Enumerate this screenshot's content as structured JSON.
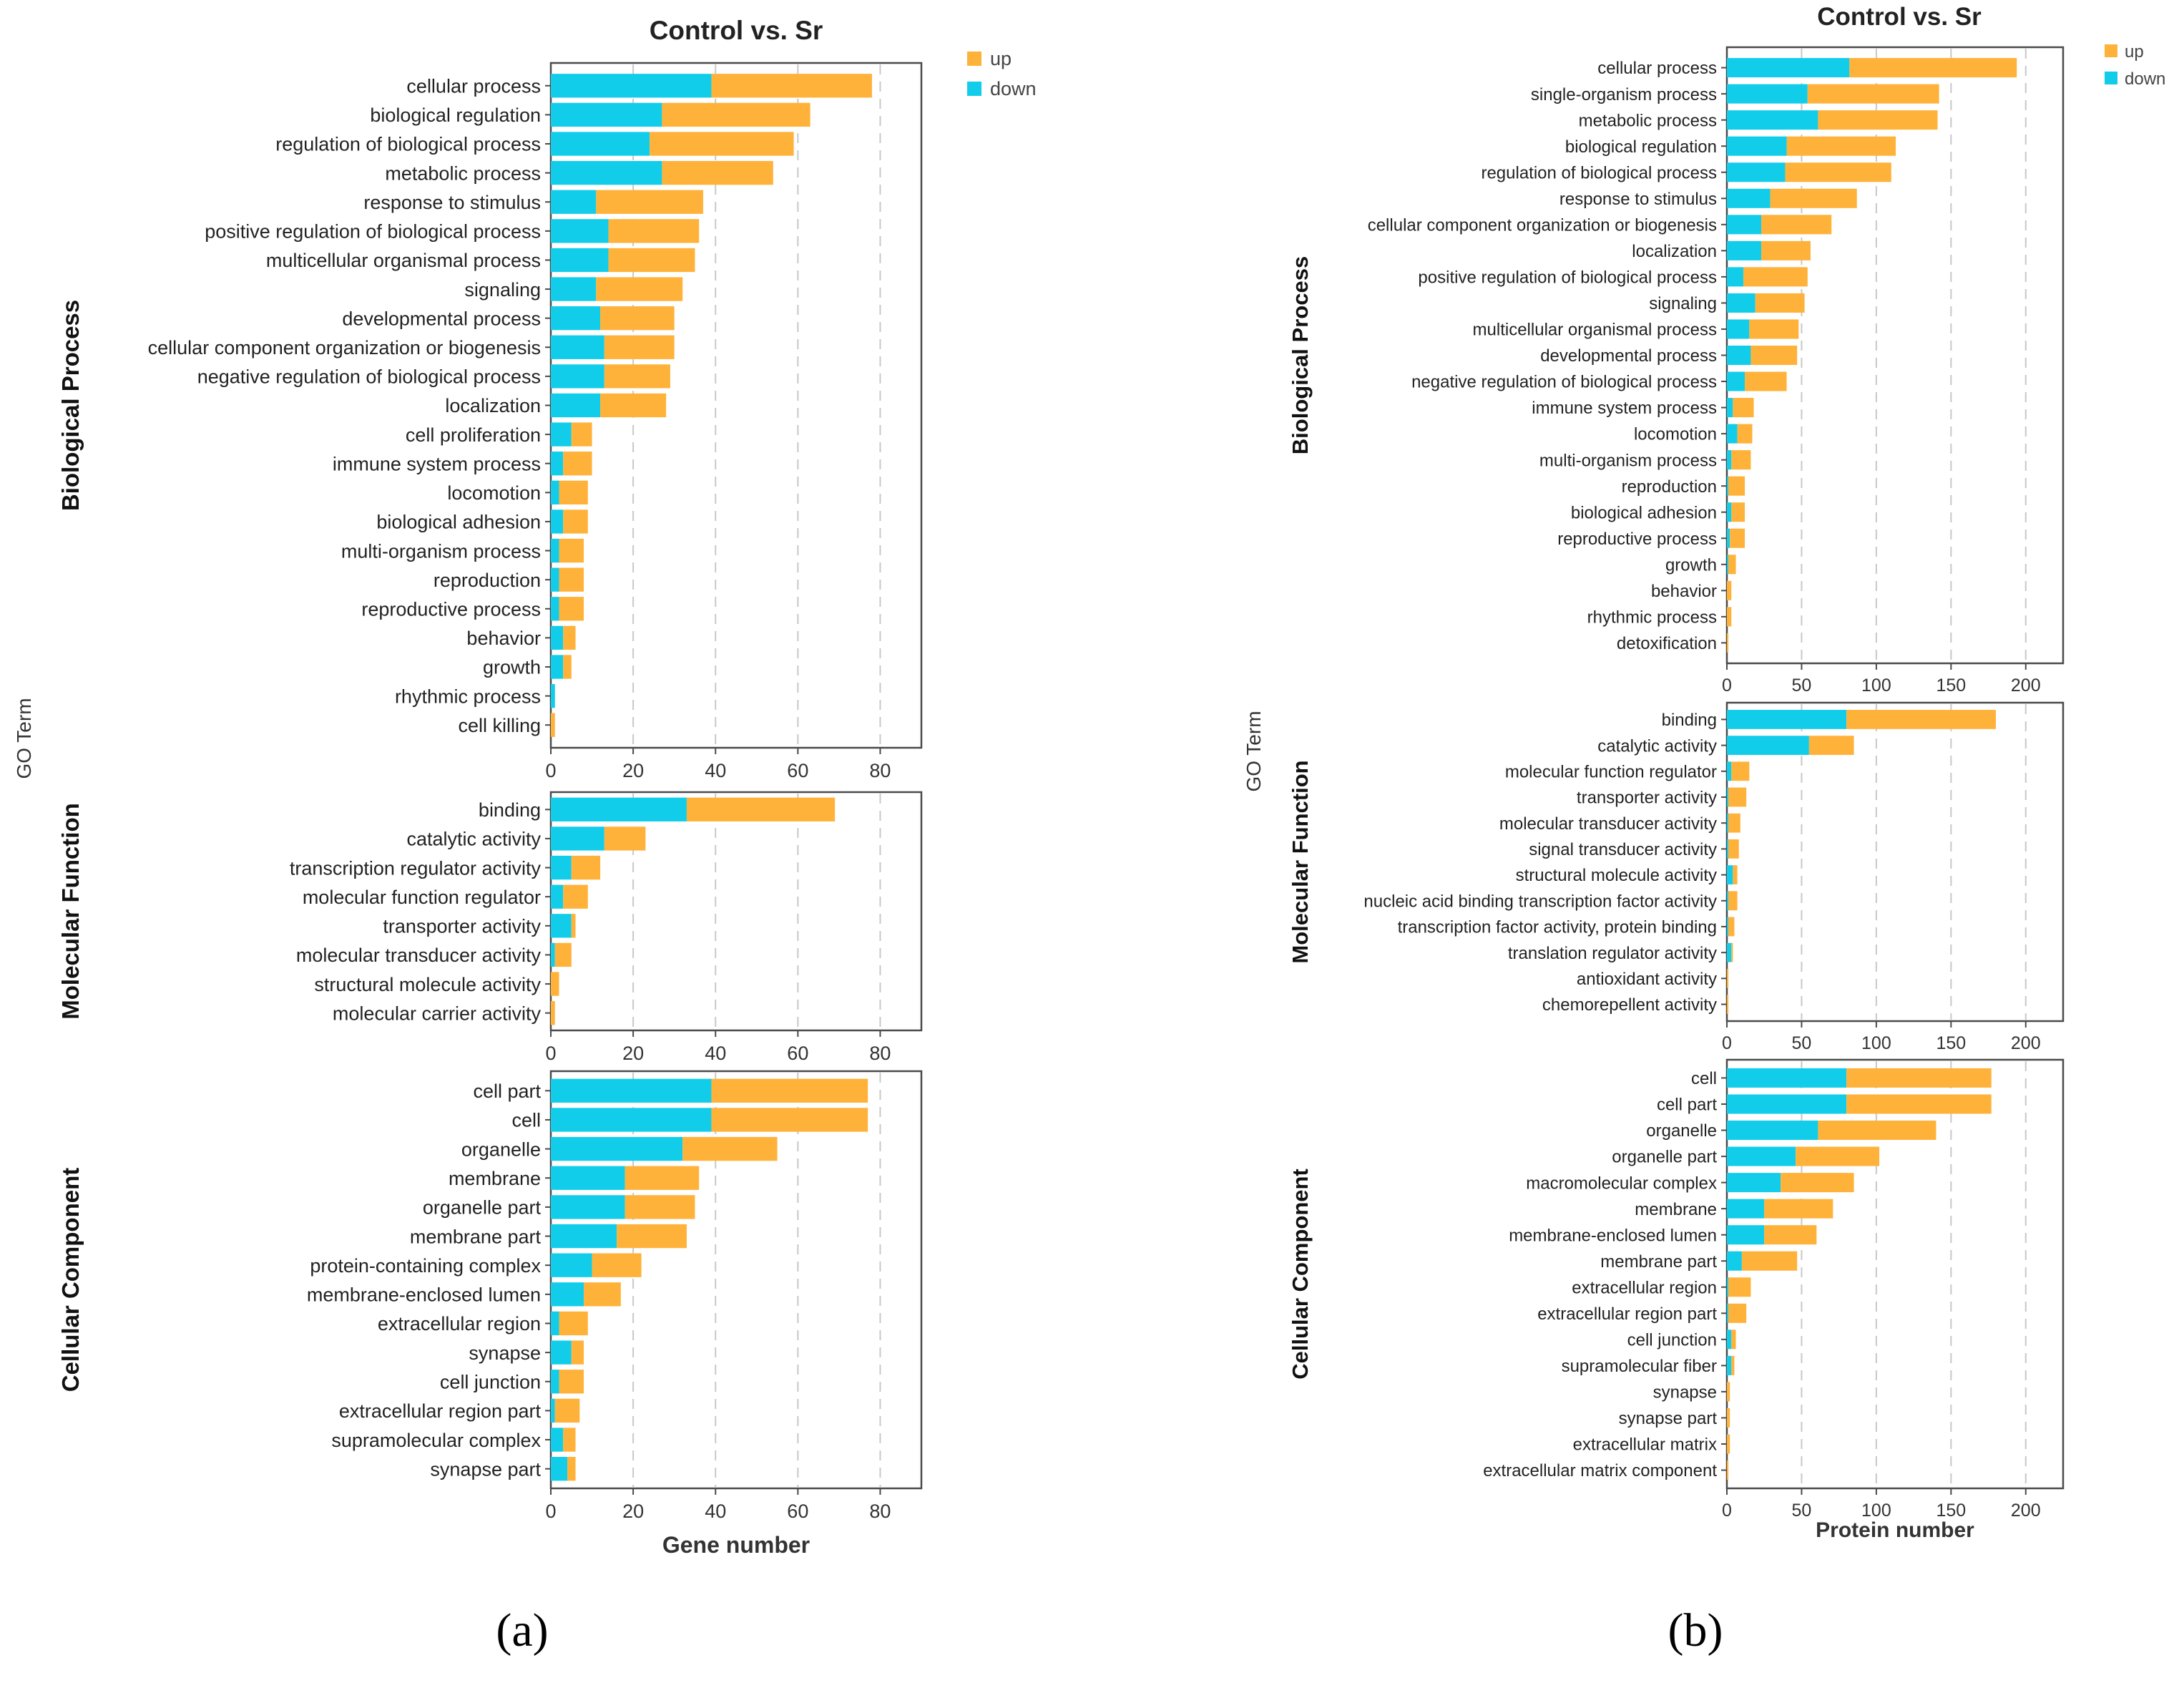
{
  "figure": {
    "panel_labels": [
      "(a)",
      "(b)"
    ]
  },
  "colors": {
    "up": "#FFB23A",
    "down": "#12CDEA",
    "text": "#222222"
  },
  "chart_data": [
    {
      "type": "bar",
      "stacked": true,
      "orientation": "horizontal",
      "panel": "(a)",
      "title": "Control vs. Sr",
      "xlabel": "Gene number",
      "ylabel": "GO Term",
      "xlim": [
        0,
        90
      ],
      "xticks": [
        0,
        20,
        40,
        60,
        80
      ],
      "grid": true,
      "legend": {
        "position": "top-right",
        "entries": [
          {
            "key": "up",
            "label": "up"
          },
          {
            "key": "down",
            "label": "down"
          }
        ]
      },
      "facets": [
        {
          "name": "Biological Process",
          "categories": [
            "cellular process",
            "biological regulation",
            "regulation of biological process",
            "metabolic process",
            "response to stimulus",
            "positive regulation of biological process",
            "multicellular organismal process",
            "signaling",
            "developmental process",
            "cellular component organization or biogenesis",
            "negative regulation of biological process",
            "localization",
            "cell proliferation",
            "immune system process",
            "locomotion",
            "biological adhesion",
            "multi-organism process",
            "reproduction",
            "reproductive process",
            "behavior",
            "growth",
            "rhythmic process",
            "cell killing"
          ],
          "series": [
            {
              "name": "down",
              "values": [
                39,
                27,
                24,
                27,
                11,
                14,
                14,
                11,
                12,
                13,
                13,
                12,
                5,
                3,
                2,
                3,
                2,
                2,
                2,
                3,
                3,
                1,
                0
              ]
            },
            {
              "name": "up",
              "values": [
                39,
                36,
                35,
                27,
                26,
                22,
                21,
                21,
                18,
                17,
                16,
                16,
                5,
                7,
                7,
                6,
                6,
                6,
                6,
                3,
                2,
                0,
                1
              ]
            }
          ]
        },
        {
          "name": "Molecular Function",
          "categories": [
            "binding",
            "catalytic activity",
            "transcription regulator activity",
            "molecular function regulator",
            "transporter activity",
            "molecular transducer activity",
            "structural molecule activity",
            "molecular carrier activity"
          ],
          "series": [
            {
              "name": "down",
              "values": [
                33,
                13,
                5,
                3,
                5,
                1,
                0,
                0
              ]
            },
            {
              "name": "up",
              "values": [
                36,
                10,
                7,
                6,
                1,
                4,
                2,
                1
              ]
            }
          ]
        },
        {
          "name": "Cellular Component",
          "categories": [
            "cell part",
            "cell",
            "organelle",
            "membrane",
            "organelle part",
            "membrane part",
            "protein-containing complex",
            "membrane-enclosed lumen",
            "extracellular region",
            "synapse",
            "cell junction",
            "extracellular region part",
            "supramolecular complex",
            "synapse part"
          ],
          "series": [
            {
              "name": "down",
              "values": [
                39,
                39,
                32,
                18,
                18,
                16,
                10,
                8,
                2,
                5,
                2,
                1,
                3,
                4
              ]
            },
            {
              "name": "up",
              "values": [
                38,
                38,
                23,
                18,
                17,
                17,
                12,
                9,
                7,
                3,
                6,
                6,
                3,
                2
              ]
            }
          ]
        }
      ]
    },
    {
      "type": "bar",
      "stacked": true,
      "orientation": "horizontal",
      "panel": "(b)",
      "title": "Control vs. Sr",
      "xlabel": "Protein number",
      "ylabel": "GO Term",
      "xlim": [
        0,
        225
      ],
      "xticks": [
        0,
        50,
        100,
        150,
        200
      ],
      "grid": true,
      "legend": {
        "position": "top-right",
        "entries": [
          {
            "key": "up",
            "label": "up"
          },
          {
            "key": "down",
            "label": "down"
          }
        ]
      },
      "facets": [
        {
          "name": "Biological Process",
          "categories": [
            "cellular process",
            "single-organism process",
            "metabolic process",
            "biological regulation",
            "regulation of biological process",
            "response to stimulus",
            "cellular component organization or biogenesis",
            "localization",
            "positive regulation of biological process",
            "signaling",
            "multicellular organismal process",
            "developmental process",
            "negative regulation of biological process",
            "immune system process",
            "locomotion",
            "multi-organism process",
            "reproduction",
            "biological adhesion",
            "reproductive process",
            "growth",
            "behavior",
            "rhythmic process",
            "detoxification"
          ],
          "series": [
            {
              "name": "down",
              "values": [
                82,
                54,
                61,
                40,
                39,
                29,
                23,
                23,
                11,
                19,
                15,
                16,
                12,
                4,
                7,
                3,
                1,
                3,
                2,
                1,
                0,
                0,
                0
              ]
            },
            {
              "name": "up",
              "values": [
                112,
                88,
                80,
                73,
                71,
                58,
                47,
                33,
                43,
                33,
                33,
                31,
                28,
                14,
                10,
                13,
                11,
                9,
                10,
                5,
                3,
                3,
                1
              ]
            }
          ]
        },
        {
          "name": "Molecular Function",
          "categories": [
            "binding",
            "catalytic activity",
            "molecular function regulator",
            "transporter activity",
            "molecular transducer activity",
            "signal transducer activity",
            "structural molecule activity",
            "nucleic acid binding transcription factor activity",
            "transcription factor activity, protein binding",
            "translation regulator activity",
            "antioxidant activity",
            "chemorepellent activity"
          ],
          "series": [
            {
              "name": "down",
              "values": [
                80,
                55,
                3,
                1,
                1,
                1,
                4,
                1,
                1,
                3,
                0,
                0
              ]
            },
            {
              "name": "up",
              "values": [
                100,
                30,
                12,
                12,
                8,
                7,
                3,
                6,
                4,
                1,
                1,
                1
              ]
            }
          ]
        },
        {
          "name": "Cellular Component",
          "categories": [
            "cell",
            "cell part",
            "organelle",
            "organelle part",
            "macromolecular complex",
            "membrane",
            "membrane-enclosed lumen",
            "membrane part",
            "extracellular region",
            "extracellular region part",
            "cell junction",
            "supramolecular fiber",
            "synapse",
            "synapse part",
            "extracellular matrix",
            "extracellular matrix component"
          ],
          "series": [
            {
              "name": "down",
              "values": [
                80,
                80,
                61,
                46,
                36,
                25,
                25,
                10,
                1,
                1,
                3,
                3,
                0,
                0,
                0,
                0
              ]
            },
            {
              "name": "up",
              "values": [
                97,
                97,
                79,
                56,
                49,
                46,
                35,
                37,
                15,
                12,
                3,
                2,
                2,
                2,
                2,
                1
              ]
            }
          ]
        }
      ]
    }
  ]
}
